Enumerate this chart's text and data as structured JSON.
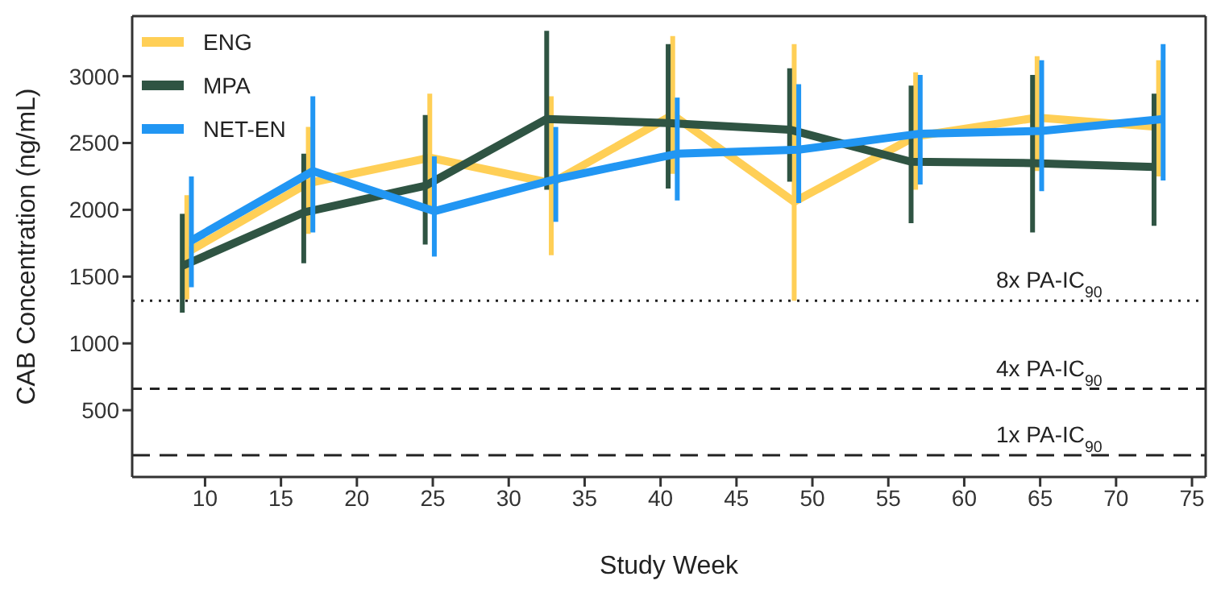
{
  "chart_data": {
    "type": "line",
    "xlabel": "Study Week",
    "ylabel": "CAB Concentration (ng/mL)",
    "xlim": [
      5.2,
      75.9
    ],
    "xticks": [
      10,
      15,
      20,
      25,
      30,
      35,
      40,
      45,
      50,
      55,
      60,
      65,
      70,
      75
    ],
    "ylim": [
      0,
      3450
    ],
    "yticks": [
      500,
      1000,
      1500,
      2000,
      2500,
      3000
    ],
    "grid": false,
    "legend": "top left",
    "marker": "none",
    "line_style": "solid",
    "series": [
      {
        "name": "ENG",
        "color": "#ffcf56",
        "x": [
          8.8,
          16.8,
          24.8,
          32.8,
          40.8,
          48.8,
          56.8,
          64.8,
          72.8
        ],
        "values": [
          1680,
          2200,
          2390,
          2200,
          2710,
          2060,
          2550,
          2690,
          2620
        ],
        "errors": [
          [
            1330,
            2110
          ],
          [
            1820,
            2620
          ],
          [
            1990,
            2870
          ],
          [
            1660,
            2850
          ],
          [
            2270,
            3300
          ],
          [
            1320,
            3240
          ],
          [
            2150,
            3030
          ],
          [
            2290,
            3150
          ],
          [
            2250,
            3120
          ]
        ]
      },
      {
        "name": "MPA",
        "color": "#2f5443",
        "x": [
          8.5,
          16.5,
          24.5,
          32.5,
          40.5,
          48.5,
          56.5,
          64.5,
          72.5
        ],
        "values": [
          1580,
          1980,
          2180,
          2680,
          2650,
          2600,
          2360,
          2350,
          2320
        ],
        "errors": [
          [
            1230,
            1970
          ],
          [
            1600,
            2420
          ],
          [
            1740,
            2710
          ],
          [
            2150,
            3340
          ],
          [
            2160,
            3240
          ],
          [
            2210,
            3060
          ],
          [
            1900,
            2930
          ],
          [
            1830,
            3010
          ],
          [
            1880,
            2870
          ]
        ]
      },
      {
        "name": "NET-EN",
        "color": "#2196f3",
        "x": [
          9.1,
          17.1,
          25.1,
          33.1,
          41.1,
          49.1,
          57.1,
          65.1,
          73.1
        ],
        "values": [
          1770,
          2290,
          1990,
          2230,
          2420,
          2450,
          2570,
          2590,
          2680
        ],
        "errors": [
          [
            1420,
            2250
          ],
          [
            1830,
            2850
          ],
          [
            1650,
            2400
          ],
          [
            1910,
            2620
          ],
          [
            2070,
            2840
          ],
          [
            2050,
            2940
          ],
          [
            2190,
            3010
          ],
          [
            2140,
            3120
          ],
          [
            2220,
            3240
          ]
        ]
      }
    ],
    "ref_lines": [
      {
        "axis": "y",
        "value": 1320,
        "label": "8x PA-IC$_{90}$",
        "line_style": "dotted",
        "color": "#222222"
      },
      {
        "axis": "y",
        "value": 660,
        "label": "4x PA-IC$_{90}$",
        "line_style": "dashed",
        "color": "#222222"
      },
      {
        "axis": "y",
        "value": 163,
        "label": "1x PA-IC$_{90}$",
        "line_style": "longdash",
        "color": "#222222"
      }
    ]
  }
}
